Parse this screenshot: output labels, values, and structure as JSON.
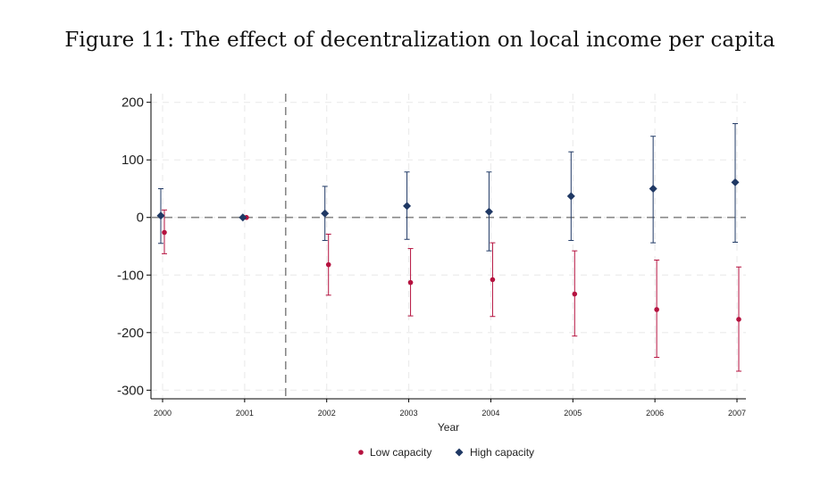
{
  "figure_title": "Figure 11: The effect of decentralization on local income per capita",
  "chart_data": {
    "type": "scatter",
    "subtype": "coefficient plot with confidence intervals",
    "title": "Figure 11: The effect of decentralization on local income per capita",
    "xlabel": "Year",
    "ylabel": "",
    "categories": [
      "2000",
      "2001",
      "2002",
      "2003",
      "2004",
      "2005",
      "2006",
      "2007"
    ],
    "ylim": [
      -315,
      215
    ],
    "yticks": [
      200,
      100,
      0,
      -100,
      -200,
      -300
    ],
    "ytick_labels": [
      "200",
      "100",
      "0",
      "-100",
      "-200",
      "-300"
    ],
    "reference_line_y": 0,
    "treatment_line_x": 2001.5,
    "grid": true,
    "legend_position": "bottom",
    "series": [
      {
        "name": "Low capacity",
        "color": "#b5123f",
        "marker": "circle",
        "values": [
          -26,
          0,
          -82,
          -113,
          -108,
          -133,
          -160,
          -177
        ],
        "ci_low": [
          -63,
          0,
          -135,
          -171,
          -172,
          -206,
          -243,
          -267
        ],
        "ci_high": [
          13,
          0,
          -29,
          -54,
          -44,
          -58,
          -74,
          -86
        ]
      },
      {
        "name": "High capacity",
        "color": "#1f3864",
        "marker": "diamond",
        "values": [
          3,
          0,
          7,
          20,
          10,
          37,
          50,
          61
        ],
        "ci_low": [
          -45,
          0,
          -40,
          -38,
          -58,
          -40,
          -44,
          -43
        ],
        "ci_high": [
          50,
          0,
          54,
          79,
          79,
          114,
          141,
          163
        ]
      }
    ]
  }
}
